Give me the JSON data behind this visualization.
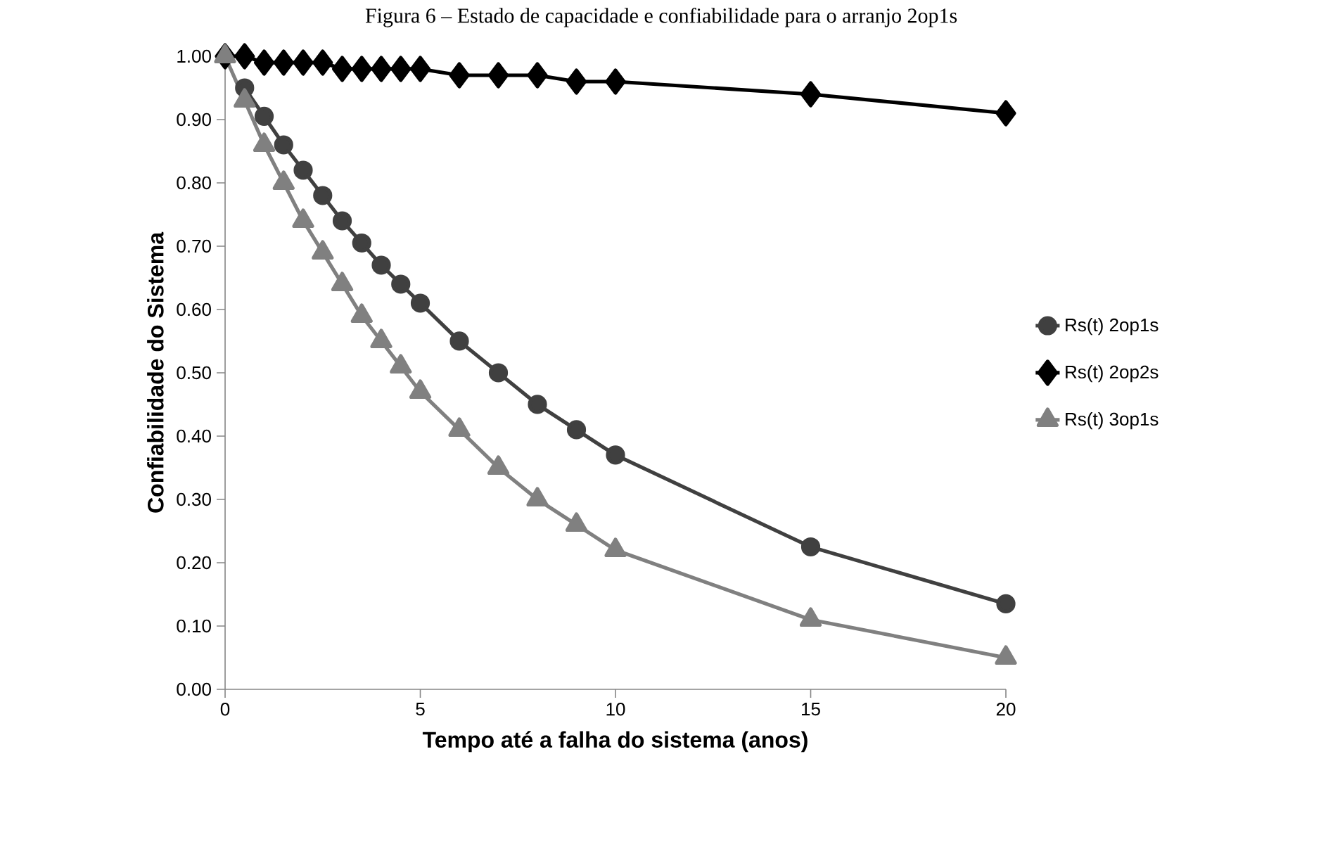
{
  "chart_data": {
    "type": "line",
    "title": "Figura 6 – Estado de capacidade e confiabilidade para o arranjo 2op1s",
    "xlabel": "Tempo até a falha do sistema (anos)",
    "ylabel": "Confiabilidade do Sistema",
    "x": [
      0,
      0.5,
      1,
      1.5,
      2,
      2.5,
      3,
      3.5,
      4,
      4.5,
      5,
      6,
      7,
      8,
      9,
      10,
      15,
      20
    ],
    "series": [
      {
        "name": "Rs(t) 2op1s",
        "color": "#404040",
        "marker": "circle",
        "values": [
          null,
          0.95,
          0.905,
          0.86,
          0.82,
          0.78,
          0.74,
          0.705,
          0.67,
          0.64,
          0.61,
          0.55,
          0.5,
          0.45,
          0.41,
          0.37,
          0.225,
          0.135
        ]
      },
      {
        "name": "Rs(t) 2op2s",
        "color": "#000000",
        "marker": "diamond",
        "values": [
          1.0,
          1.0,
          0.99,
          0.99,
          0.99,
          0.99,
          0.98,
          0.98,
          0.98,
          0.98,
          0.98,
          0.97,
          0.97,
          0.97,
          0.96,
          0.96,
          0.94,
          0.91
        ]
      },
      {
        "name": "Rs(t) 3op1s",
        "color": "#808080",
        "marker": "triangle",
        "values": [
          1.0,
          0.93,
          0.86,
          0.8,
          0.74,
          0.69,
          0.64,
          0.59,
          0.55,
          0.51,
          0.47,
          0.41,
          0.35,
          0.3,
          0.26,
          0.22,
          0.11,
          0.05
        ]
      }
    ],
    "xlim": [
      0,
      20
    ],
    "xticks": [
      0,
      5,
      10,
      15,
      20
    ],
    "ylim": [
      0,
      1
    ],
    "yticks": [
      {
        "value": 0,
        "label": "0.00"
      },
      {
        "value": 0.1,
        "label": "0.10"
      },
      {
        "value": 0.2,
        "label": "0.20"
      },
      {
        "value": 0.3,
        "label": "0.30"
      },
      {
        "value": 0.4,
        "label": "0.40"
      },
      {
        "value": 0.5,
        "label": "0.50"
      },
      {
        "value": 0.6,
        "label": "0.60"
      },
      {
        "value": 0.7,
        "label": "0.70"
      },
      {
        "value": 0.8,
        "label": "0.80"
      },
      {
        "value": 0.9,
        "label": "0.90"
      },
      {
        "value": 1,
        "label": "1.00"
      }
    ],
    "grid": false,
    "legend": "right",
    "line_style": "solid"
  }
}
